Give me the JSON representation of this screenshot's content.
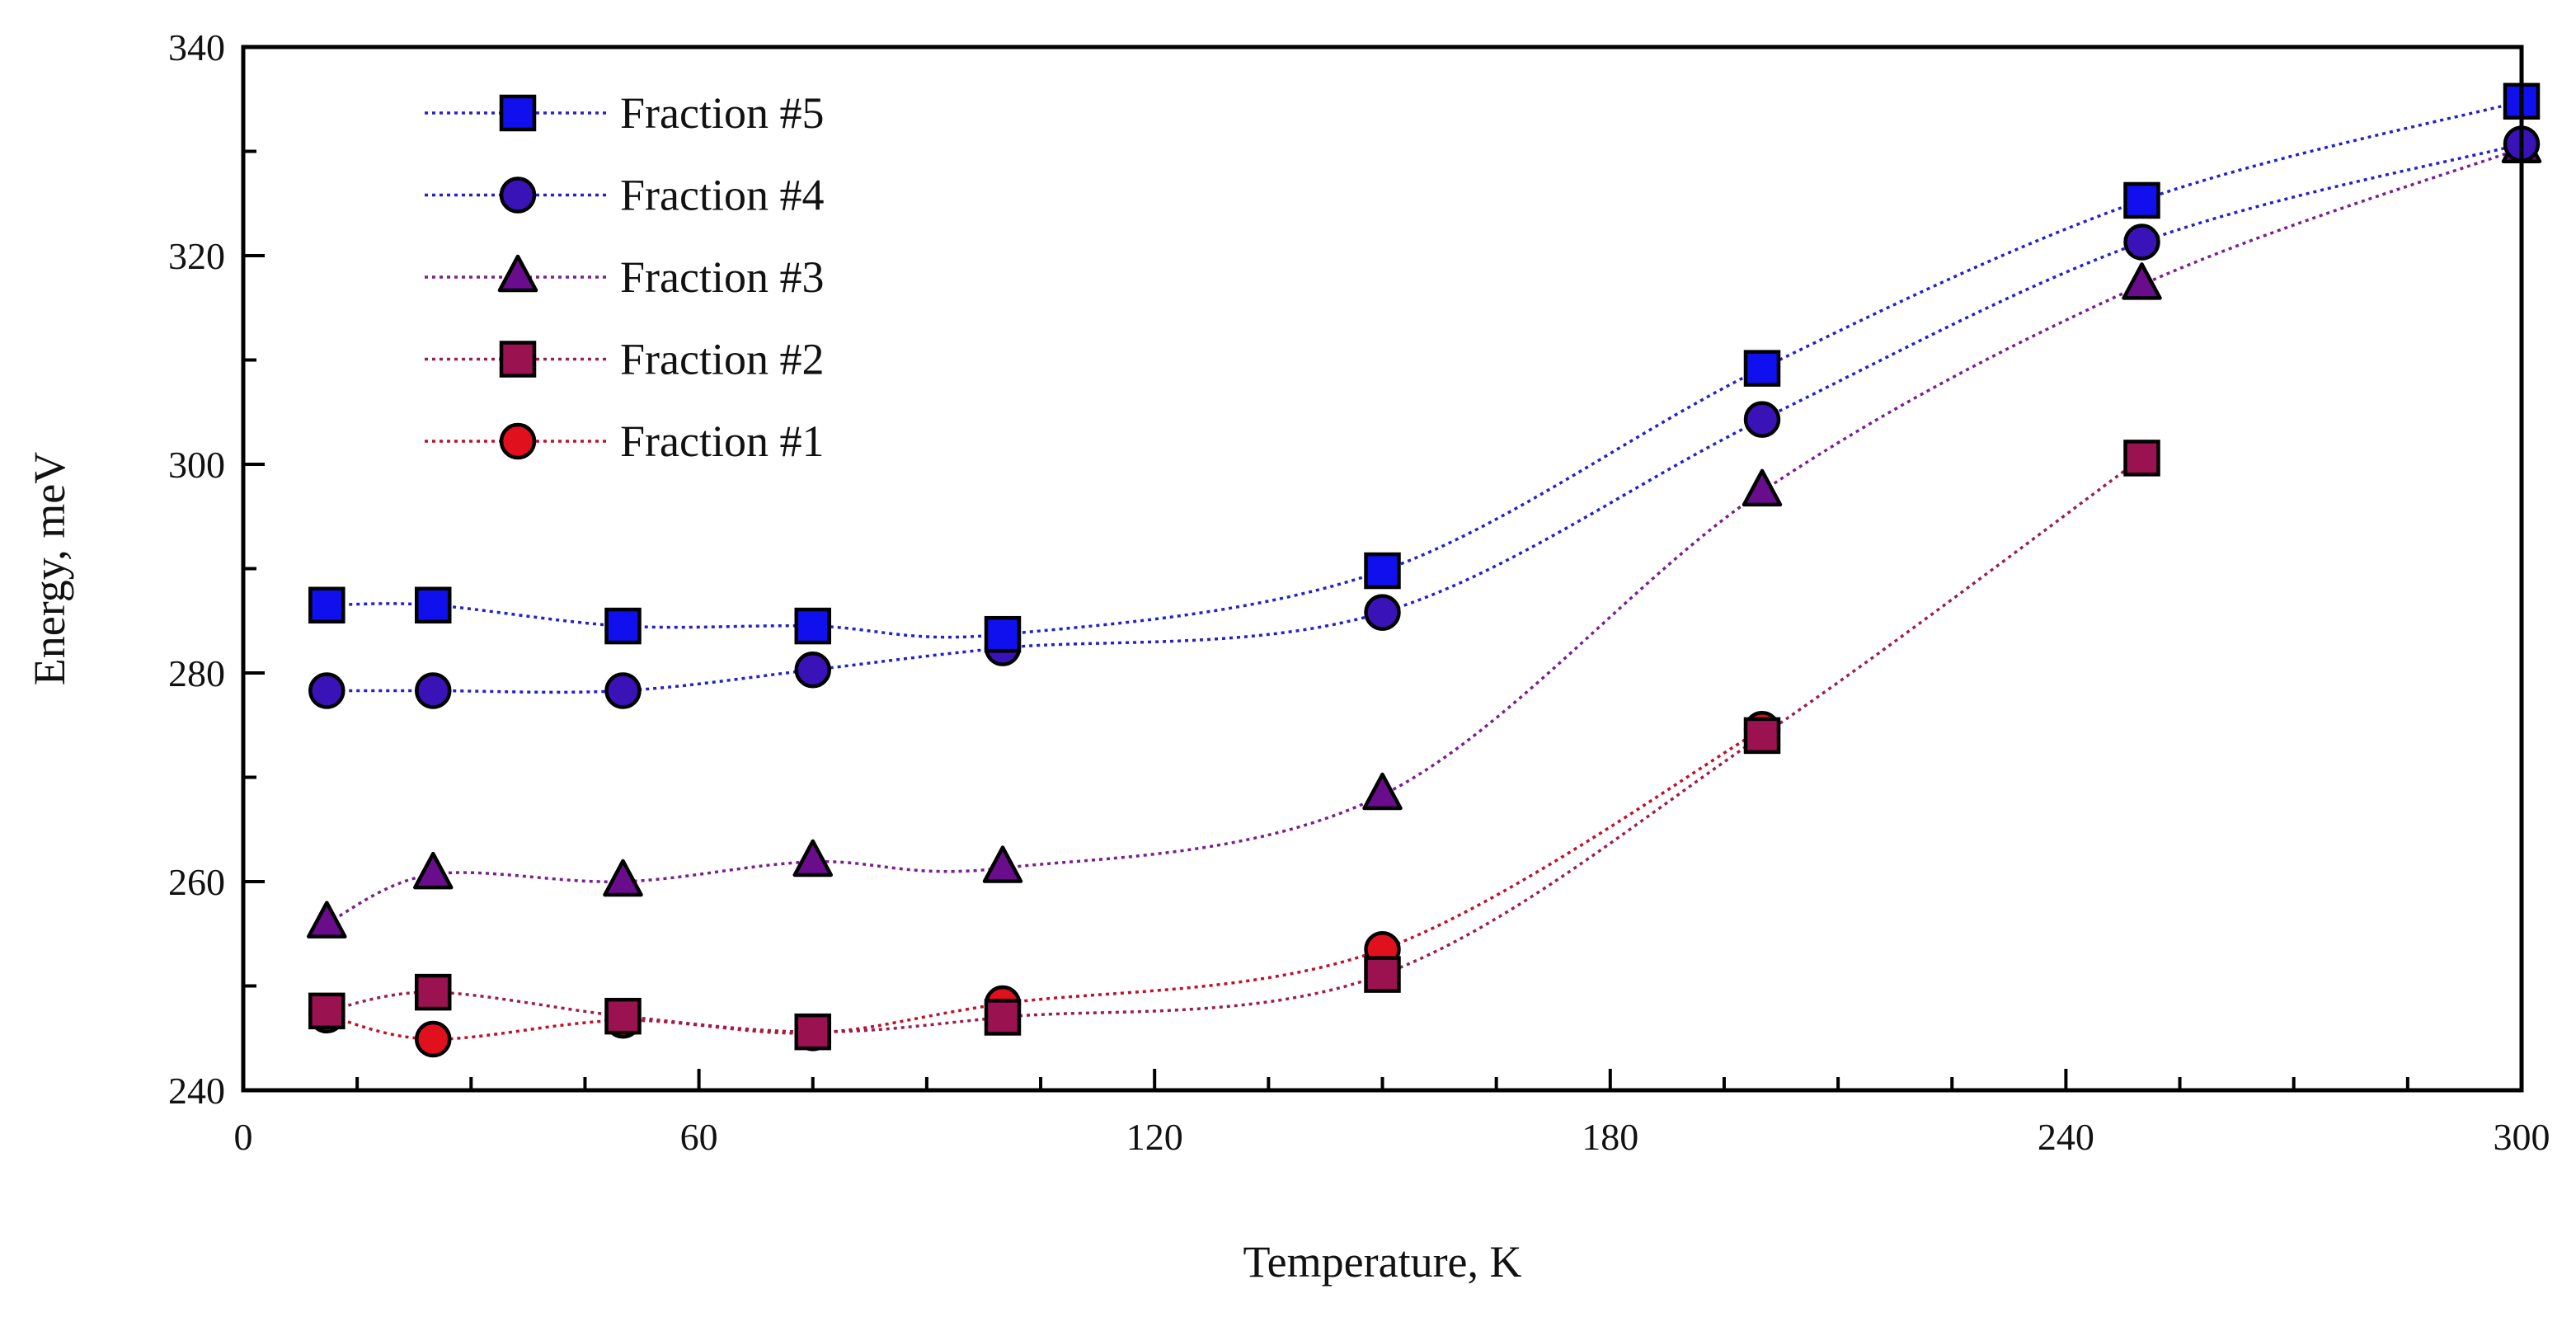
{
  "chart_data": {
    "type": "line",
    "xlabel": "Temperature, K",
    "ylabel": "Energy, meV",
    "xlim": [
      0,
      300
    ],
    "ylim": [
      240,
      340
    ],
    "xticks": [
      0,
      60,
      120,
      180,
      240,
      300
    ],
    "yticks": [
      240,
      260,
      280,
      300,
      320,
      340
    ],
    "x_minor_step": 15,
    "y_minor_step": 10,
    "legend_position": "top-left",
    "series": [
      {
        "name": "Fraction #5",
        "marker": "square",
        "fill": "#1010ee",
        "line": "#2222cc",
        "x": [
          11,
          25,
          50,
          75,
          100,
          150,
          200,
          250,
          300
        ],
        "y": [
          286.5,
          286.5,
          284.5,
          284.5,
          283.7,
          289.8,
          309.2,
          325.3,
          334.8
        ]
      },
      {
        "name": "Fraction #4",
        "marker": "circle",
        "fill": "#3a13b8",
        "line": "#2222cc",
        "x": [
          11,
          25,
          50,
          75,
          100,
          150,
          200,
          250,
          300
        ],
        "y": [
          278.3,
          278.3,
          278.3,
          280.3,
          282.4,
          285.8,
          304.3,
          321.3,
          330.7
        ]
      },
      {
        "name": "Fraction #3",
        "marker": "triangle",
        "fill": "#6a0d8c",
        "line": "#7a1f8e",
        "x": [
          11,
          25,
          50,
          75,
          100,
          150,
          200,
          250,
          300
        ],
        "y": [
          256.0,
          260.7,
          260.0,
          261.9,
          261.3,
          268.3,
          297.4,
          317.2,
          330.3
        ]
      },
      {
        "name": "Fraction #2",
        "marker": "square",
        "fill": "#9a1250",
        "line": "#9a1f4e",
        "x": [
          11,
          25,
          50,
          75,
          100,
          150,
          200,
          250
        ],
        "y": [
          247.6,
          249.4,
          247.1,
          245.6,
          247.0,
          251.1,
          274.0,
          300.6
        ]
      },
      {
        "name": "Fraction #1",
        "marker": "circle",
        "fill": "#e0101c",
        "line": "#c0102a",
        "x": [
          11,
          25,
          50,
          75,
          100,
          150,
          200
        ],
        "y": [
          247.2,
          244.9,
          246.7,
          245.5,
          248.3,
          253.5,
          274.6
        ]
      }
    ]
  }
}
